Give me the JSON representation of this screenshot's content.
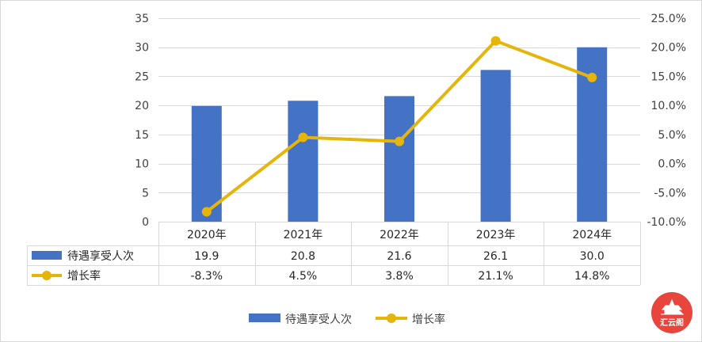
{
  "chart_data": {
    "type": "bar+line",
    "categories": [
      "2020年",
      "2021年",
      "2022年",
      "2023年",
      "2024年"
    ],
    "series": [
      {
        "name": "待遇享受人次",
        "type": "bar",
        "axis": "left",
        "values": [
          19.9,
          20.8,
          21.6,
          26.1,
          30.0
        ],
        "labels": [
          "19.9",
          "20.8",
          "21.6",
          "26.1",
          "30.0"
        ],
        "color": "#4472C4"
      },
      {
        "name": "增长率",
        "type": "line",
        "axis": "right",
        "values": [
          -8.3,
          4.5,
          3.8,
          21.1,
          14.8
        ],
        "labels": [
          "-8.3%",
          "4.5%",
          "3.8%",
          "21.1%",
          "14.8%"
        ],
        "color": "#E6B50B"
      }
    ],
    "y_left": {
      "min": 0,
      "max": 35,
      "step": 5,
      "ticks": [
        "0",
        "5",
        "10",
        "15",
        "20",
        "25",
        "30",
        "35"
      ]
    },
    "y_right": {
      "min": -10,
      "max": 25,
      "step": 5,
      "ticks": [
        "-10.0%",
        "-5.0%",
        "0.0%",
        "5.0%",
        "10.0%",
        "15.0%",
        "20.0%",
        "25.0%"
      ]
    },
    "grid": true,
    "data_table": true,
    "legend_position": "bottom"
  },
  "watermark": {
    "text": "汇云阁",
    "color": "#E8453C"
  }
}
